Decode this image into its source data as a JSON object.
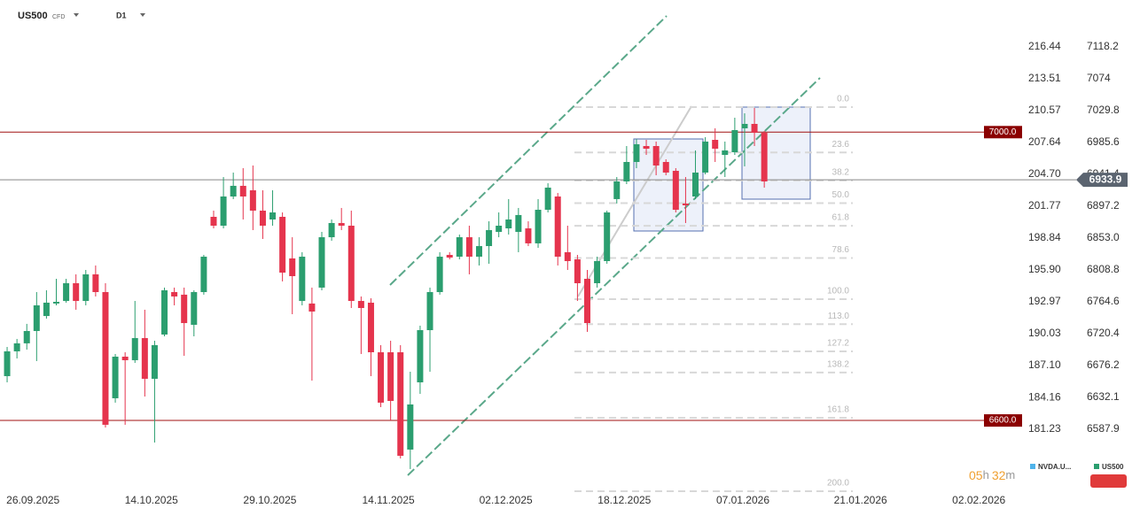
{
  "header": {
    "symbol": "US500",
    "symbol_type": "CFD",
    "timeframe": "D1"
  },
  "countdown": {
    "hours": "05",
    "h": "h",
    "minutes": "32",
    "m": "m"
  },
  "chart_data": {
    "type": "candlestick",
    "up_color": "#2b9e6f",
    "down_color": "#e5344d",
    "candles": [
      {
        "o": 6661.5,
        "h": 6702.0,
        "l": 6652.9,
        "c": 6695.9
      },
      {
        "o": 6695.9,
        "h": 6713.1,
        "l": 6686.0,
        "c": 6707.0
      },
      {
        "o": 6707.0,
        "h": 6734.0,
        "l": 6698.3,
        "c": 6724.1
      },
      {
        "o": 6724.1,
        "h": 6778.1,
        "l": 6682.4,
        "c": 6759.7
      },
      {
        "o": 6744.9,
        "h": 6780.6,
        "l": 6741.3,
        "c": 6763.4
      },
      {
        "o": 6762.2,
        "h": 6796.5,
        "l": 6759.7,
        "c": 6764.6
      },
      {
        "o": 6765.8,
        "h": 6796.5,
        "l": 6763.4,
        "c": 6790.4
      },
      {
        "o": 6790.4,
        "h": 6802.7,
        "l": 6753.6,
        "c": 6765.8
      },
      {
        "o": 6765.8,
        "h": 6808.8,
        "l": 6759.7,
        "c": 6802.7
      },
      {
        "o": 6802.7,
        "h": 6815.0,
        "l": 6772.0,
        "c": 6778.1
      },
      {
        "o": 6778.1,
        "h": 6790.4,
        "l": 6590.3,
        "c": 6594.0
      },
      {
        "o": 6630.8,
        "h": 6692.2,
        "l": 6624.7,
        "c": 6688.5
      },
      {
        "o": 6688.5,
        "h": 6694.6,
        "l": 6594.0,
        "c": 6683.6
      },
      {
        "o": 6683.6,
        "h": 6765.8,
        "l": 6679.9,
        "c": 6714.3
      },
      {
        "o": 6714.3,
        "h": 6753.6,
        "l": 6633.2,
        "c": 6657.8
      },
      {
        "o": 6657.8,
        "h": 6710.6,
        "l": 6569.4,
        "c": 6704.5
      },
      {
        "o": 6719.2,
        "h": 6784.3,
        "l": 6716.7,
        "c": 6780.6
      },
      {
        "o": 6778.1,
        "h": 6784.3,
        "l": 6759.7,
        "c": 6772.0
      },
      {
        "o": 6774.5,
        "h": 6784.3,
        "l": 6689.7,
        "c": 6735.1
      },
      {
        "o": 6732.7,
        "h": 6780.6,
        "l": 6716.7,
        "c": 6778.1
      },
      {
        "o": 6778.1,
        "h": 6829.7,
        "l": 6774.5,
        "c": 6827.2
      },
      {
        "o": 6882.5,
        "h": 6891.1,
        "l": 6866.5,
        "c": 6870.2
      },
      {
        "o": 6870.2,
        "h": 6937.7,
        "l": 6866.5,
        "c": 6910.7
      },
      {
        "o": 6910.7,
        "h": 6943.9,
        "l": 6907.1,
        "c": 6925.5
      },
      {
        "o": 6925.5,
        "h": 6950.0,
        "l": 6878.8,
        "c": 6910.7
      },
      {
        "o": 6919.3,
        "h": 6953.7,
        "l": 6864.1,
        "c": 6891.1
      },
      {
        "o": 6891.1,
        "h": 6919.3,
        "l": 6851.8,
        "c": 6870.2
      },
      {
        "o": 6878.8,
        "h": 6919.3,
        "l": 6870.2,
        "c": 6888.6
      },
      {
        "o": 6882.5,
        "h": 6888.6,
        "l": 6792.9,
        "c": 6805.1
      },
      {
        "o": 6824.8,
        "h": 6854.2,
        "l": 6747.4,
        "c": 6800.2
      },
      {
        "o": 6765.8,
        "h": 6833.4,
        "l": 6759.7,
        "c": 6827.2
      },
      {
        "o": 6762.2,
        "h": 6784.3,
        "l": 6655.3,
        "c": 6751.1
      },
      {
        "o": 6784.3,
        "h": 6861.6,
        "l": 6780.6,
        "c": 6854.2
      },
      {
        "o": 6854.2,
        "h": 6878.8,
        "l": 6849.3,
        "c": 6873.9
      },
      {
        "o": 6873.9,
        "h": 6894.8,
        "l": 6864.1,
        "c": 6870.2
      },
      {
        "o": 6870.2,
        "h": 6891.1,
        "l": 6756.0,
        "c": 6765.8
      },
      {
        "o": 6765.8,
        "h": 6772.0,
        "l": 6692.2,
        "c": 6756.0
      },
      {
        "o": 6763.4,
        "h": 6769.5,
        "l": 6661.5,
        "c": 6694.6
      },
      {
        "o": 6694.6,
        "h": 6704.5,
        "l": 6618.5,
        "c": 6624.7
      },
      {
        "o": 6694.6,
        "h": 6710.6,
        "l": 6600.1,
        "c": 6627.1
      },
      {
        "o": 6694.6,
        "h": 6704.5,
        "l": 6547.3,
        "c": 6551.0
      },
      {
        "o": 6559.6,
        "h": 6667.6,
        "l": 6532.6,
        "c": 6622.2
      },
      {
        "o": 6652.9,
        "h": 6731.5,
        "l": 6636.9,
        "c": 6725.3
      },
      {
        "o": 6725.3,
        "h": 6784.3,
        "l": 6667.6,
        "c": 6778.1
      },
      {
        "o": 6778.1,
        "h": 6833.4,
        "l": 6774.5,
        "c": 6827.2
      },
      {
        "o": 6829.7,
        "h": 6833.4,
        "l": 6823.5,
        "c": 6826.0
      },
      {
        "o": 6827.2,
        "h": 6857.9,
        "l": 6823.5,
        "c": 6854.2
      },
      {
        "o": 6854.2,
        "h": 6870.2,
        "l": 6802.7,
        "c": 6827.2
      },
      {
        "o": 6827.2,
        "h": 6854.2,
        "l": 6815.0,
        "c": 6841.9
      },
      {
        "o": 6841.9,
        "h": 6876.3,
        "l": 6817.4,
        "c": 6864.1
      },
      {
        "o": 6861.6,
        "h": 6888.6,
        "l": 6854.2,
        "c": 6870.2
      },
      {
        "o": 6866.5,
        "h": 6907.1,
        "l": 6857.9,
        "c": 6878.8
      },
      {
        "o": 6861.6,
        "h": 6894.8,
        "l": 6833.4,
        "c": 6885.0
      },
      {
        "o": 6866.5,
        "h": 6876.3,
        "l": 6841.9,
        "c": 6845.7
      },
      {
        "o": 6845.7,
        "h": 6907.1,
        "l": 6839.5,
        "c": 6892.3
      },
      {
        "o": 6892.3,
        "h": 6929.1,
        "l": 6888.6,
        "c": 6923.0
      },
      {
        "o": 6910.7,
        "h": 6915.6,
        "l": 6815.0,
        "c": 6827.2
      },
      {
        "o": 6833.4,
        "h": 6870.2,
        "l": 6808.8,
        "c": 6821.1
      },
      {
        "o": 6823.5,
        "h": 6829.7,
        "l": 6765.8,
        "c": 6790.4
      },
      {
        "o": 6796.5,
        "h": 6808.8,
        "l": 6722.9,
        "c": 6735.1
      },
      {
        "o": 6790.4,
        "h": 6827.2,
        "l": 6784.3,
        "c": 6821.1
      },
      {
        "o": 6821.1,
        "h": 6891.1,
        "l": 6817.4,
        "c": 6888.6
      },
      {
        "o": 6907.1,
        "h": 6937.7,
        "l": 6900.9,
        "c": 6931.6
      },
      {
        "o": 6931.6,
        "h": 6980.7,
        "l": 6927.9,
        "c": 6958.6
      },
      {
        "o": 6958.6,
        "h": 6990.5,
        "l": 6950.0,
        "c": 6983.2
      },
      {
        "o": 6980.7,
        "h": 6989.3,
        "l": 6968.4,
        "c": 6977.0
      },
      {
        "o": 6980.7,
        "h": 6986.9,
        "l": 6940.2,
        "c": 6953.7
      },
      {
        "o": 6958.6,
        "h": 6962.3,
        "l": 6940.2,
        "c": 6943.9
      },
      {
        "o": 6946.3,
        "h": 6950.0,
        "l": 6888.6,
        "c": 6892.3
      },
      {
        "o": 6900.9,
        "h": 6937.7,
        "l": 6873.9,
        "c": 6898.5
      },
      {
        "o": 6910.7,
        "h": 6974.6,
        "l": 6907.1,
        "c": 6943.9
      },
      {
        "o": 6943.9,
        "h": 6993.0,
        "l": 6941.4,
        "c": 6986.9
      },
      {
        "o": 6989.3,
        "h": 7005.3,
        "l": 6958.6,
        "c": 6977.0
      },
      {
        "o": 6968.4,
        "h": 6986.9,
        "l": 6937.7,
        "c": 6974.6
      },
      {
        "o": 6972.1,
        "h": 7020.0,
        "l": 6968.4,
        "c": 7002.8
      },
      {
        "o": 7005.3,
        "h": 7026.1,
        "l": 6952.5,
        "c": 7011.4
      },
      {
        "o": 7011.4,
        "h": 7033.5,
        "l": 6980.7,
        "c": 6999.1
      },
      {
        "o": 6999.1,
        "h": 7001.6,
        "l": 6923.0,
        "c": 6931.6
      }
    ],
    "xlim": [
      -0.725,
      103.4
    ],
    "xticks": [
      {
        "value": 2.63,
        "label": "26.09.2025"
      },
      {
        "value": 14.67,
        "label": "14.10.2025"
      },
      {
        "value": 26.72,
        "label": "29.10.2025"
      },
      {
        "value": 38.77,
        "label": "14.11.2025"
      },
      {
        "value": 50.72,
        "label": "02.12.2025"
      },
      {
        "value": 62.77,
        "label": "18.12.2025"
      },
      {
        "value": 74.82,
        "label": "07.01.2026"
      },
      {
        "value": 86.78,
        "label": "21.01.2026"
      },
      {
        "value": 98.82,
        "label": "02.02.2026"
      }
    ],
    "ylim": [
      6495.7,
      7183.3
    ],
    "yticks": [
      7118.2,
      7074,
      7029.8,
      6985.6,
      6941.4,
      6897.2,
      {
        "value": 6853,
        "label": "6853.0"
      },
      6808.8,
      6764.6,
      6720.4,
      6676.2,
      6632.1,
      6587.9
    ],
    "y2lim": [
      175.12,
      220.76
    ],
    "y2ticks": [
      216.44,
      213.51,
      210.57,
      207.64,
      {
        "value": 204.7,
        "label": "204.70"
      },
      201.77,
      198.84,
      {
        "value": 195.9,
        "label": "195.90"
      },
      192.97,
      190.03,
      {
        "value": 187.1,
        "label": "187.10"
      },
      184.16,
      181.23
    ],
    "levels": [
      {
        "value": 7000,
        "label": "7000.0"
      },
      {
        "value": 6600,
        "label": "6600.0"
      }
    ],
    "current_price": {
      "value": 6933.9,
      "label": "6933.9"
    },
    "fibonacci": {
      "high": 7034.7,
      "low": 6768.3,
      "levels": [
        {
          "value": 0,
          "label": "0.0"
        },
        23.6,
        38.2,
        {
          "value": 50,
          "label": "50.0"
        },
        61.8,
        78.6,
        {
          "value": 100,
          "label": "100.0"
        },
        {
          "value": 113,
          "label": "113.0"
        },
        127.2,
        138.2,
        161.8,
        {
          "value": 200,
          "label": "200.0"
        }
      ]
    },
    "legend": [
      {
        "name": "NVDA.U...",
        "color": "#4fb3ea"
      },
      {
        "name": "US500",
        "color": "#2b9e6f"
      }
    ]
  }
}
